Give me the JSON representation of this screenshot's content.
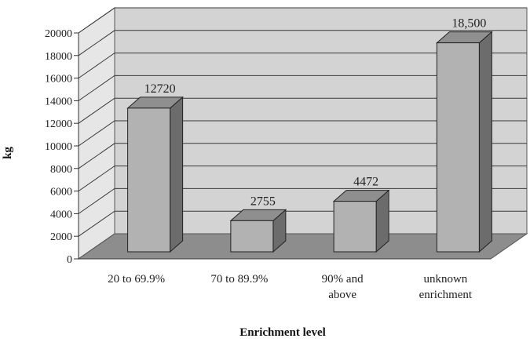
{
  "chart_data": {
    "type": "bar",
    "title": "",
    "xlabel": "Enrichment level",
    "ylabel": "kg",
    "ylim": [
      0,
      20000
    ],
    "yticks": [
      0,
      2000,
      4000,
      6000,
      8000,
      10000,
      12000,
      14000,
      16000,
      18000,
      20000
    ],
    "categories": [
      [
        "20 to 69.9%"
      ],
      [
        "70 to 89.9%"
      ],
      [
        "90% and",
        "above"
      ],
      [
        "unknown",
        "enrichment"
      ]
    ],
    "values": [
      12720,
      2755,
      4472,
      18500
    ],
    "data_labels": [
      "12720",
      "2755",
      "4472",
      "18,500"
    ],
    "grid": true,
    "style": "3d-column",
    "colors": {
      "bar_front": "#b2b2b2",
      "bar_side": "#6c6c6c",
      "bar_top": "#8f8f8f",
      "floor": "#8d8d8d",
      "back_wall": "#d3d3d3",
      "side_wall": "#e6e6e6",
      "gridline": "#3a3a3a"
    }
  }
}
